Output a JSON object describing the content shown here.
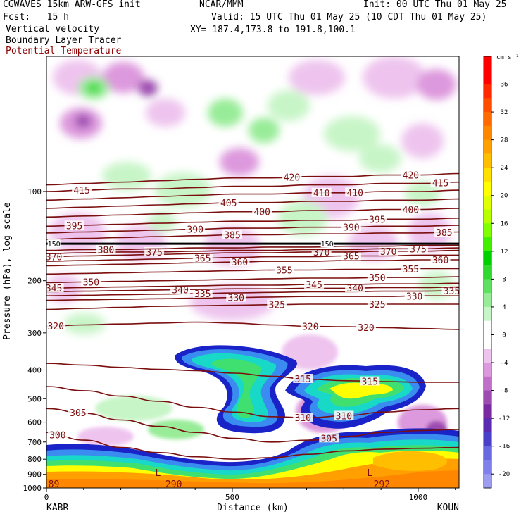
{
  "header": {
    "model": "CGWAVES 15km ARW-GFS init",
    "forecast": "Fcst:   15 h",
    "org": "NCAR/MMM",
    "init": "Init: 00 UTC Thu 01 May 25",
    "valid": "Valid: 15 UTC Thu 01 May 25 (10 CDT Thu 01 May 25)",
    "xy": "XY= 187.4,173.8 to 191.8,100.1",
    "field1": "Vertical velocity",
    "field2": "Boundary Layer Tracer",
    "field3": "Potential Temperature"
  },
  "colors": {
    "theta": "#7b0f0f",
    "tracer": "#1a23c8",
    "cross_150": "#000000"
  },
  "chart_data": {
    "type": "heatmap",
    "xlabel": "Distance (km)",
    "ylabel": "Pressure (hPa), log scale",
    "xlim": [
      0,
      1110
    ],
    "ylim_hpa": [
      1000,
      35
    ],
    "x_ticks": [
      0,
      500,
      1000
    ],
    "y_ticks": [
      100,
      200,
      300,
      400,
      500,
      600,
      700,
      800,
      900,
      1000
    ],
    "start_label": "KABR",
    "end_label": "KOUN",
    "colorbar": {
      "unit": "cm s⁻¹",
      "tick_labels": [
        "36",
        "32",
        "28",
        "24",
        "20",
        "16",
        "12",
        "8",
        "4",
        "0",
        "-4",
        "-8",
        "-12",
        "-16",
        "-20"
      ],
      "bands": [
        {
          "lo": 38,
          "hi": 40,
          "color": "#ff0000"
        },
        {
          "lo": 36,
          "hi": 38,
          "color": "#ff0000"
        },
        {
          "lo": 34,
          "hi": 36,
          "color": "#ff2a00"
        },
        {
          "lo": 32,
          "hi": 34,
          "color": "#ff4d00"
        },
        {
          "lo": 30,
          "hi": 32,
          "color": "#ff6a00"
        },
        {
          "lo": 28,
          "hi": 30,
          "color": "#ff8700"
        },
        {
          "lo": 26,
          "hi": 28,
          "color": "#ffa000"
        },
        {
          "lo": 24,
          "hi": 26,
          "color": "#ffbe00"
        },
        {
          "lo": 22,
          "hi": 24,
          "color": "#ffe000"
        },
        {
          "lo": 20,
          "hi": 22,
          "color": "#ffff00"
        },
        {
          "lo": 18,
          "hi": 20,
          "color": "#e0ff00"
        },
        {
          "lo": 16,
          "hi": 18,
          "color": "#b8ff00"
        },
        {
          "lo": 14,
          "hi": 16,
          "color": "#80ff00"
        },
        {
          "lo": 12,
          "hi": 14,
          "color": "#40f000"
        },
        {
          "lo": 10,
          "hi": 12,
          "color": "#00d000"
        },
        {
          "lo": 8,
          "hi": 10,
          "color": "#30d830"
        },
        {
          "lo": 6,
          "hi": 8,
          "color": "#60e060"
        },
        {
          "lo": 4,
          "hi": 6,
          "color": "#98ec98"
        },
        {
          "lo": 2,
          "hi": 4,
          "color": "#c8f5c8"
        },
        {
          "lo": 0,
          "hi": 2,
          "color": "#ffffff"
        },
        {
          "lo": -2,
          "hi": 0,
          "color": "#ffffff"
        },
        {
          "lo": -4,
          "hi": -2,
          "color": "#eec4ee"
        },
        {
          "lo": -6,
          "hi": -4,
          "color": "#dd99dd"
        },
        {
          "lo": -8,
          "hi": -6,
          "color": "#c070c8"
        },
        {
          "lo": -10,
          "hi": -8,
          "color": "#9c4cb0"
        },
        {
          "lo": -12,
          "hi": -10,
          "color": "#7a2aa0"
        },
        {
          "lo": -14,
          "hi": -12,
          "color": "#5a2ab0"
        },
        {
          "lo": -16,
          "hi": -14,
          "color": "#4a40c8"
        },
        {
          "lo": -18,
          "hi": -16,
          "color": "#6868e0"
        },
        {
          "lo": -20,
          "hi": -18,
          "color": "#8080ec"
        },
        {
          "lo": -22,
          "hi": -20,
          "color": "#9c9cf0"
        }
      ]
    },
    "theta_contours": [
      {
        "value": 300,
        "p": [
          650,
          690,
          730,
          760,
          785,
          800,
          790,
          770,
          750,
          740,
          735,
          730
        ],
        "labels": [
          {
            "x": 30,
            "text": "300"
          }
        ]
      },
      {
        "value": 305,
        "p": [
          540,
          560,
          590,
          620,
          650,
          680,
          700,
          690,
          670,
          650,
          640,
          635
        ],
        "labels": [
          {
            "x": 85,
            "text": "305"
          },
          {
            "x": 760,
            "text": "305"
          }
        ]
      },
      {
        "value": 310,
        "p": [
          455,
          470,
          490,
          510,
          535,
          555,
          575,
          580,
          570,
          555,
          545,
          540
        ],
        "labels": [
          {
            "x": 690,
            "text": "310"
          },
          {
            "x": 800,
            "text": "310"
          }
        ]
      },
      {
        "value": 315,
        "p": [
          380,
          385,
          392,
          398,
          402,
          410,
          420,
          430,
          435,
          438,
          440,
          440
        ],
        "labels": [
          {
            "x": 690,
            "text": "315"
          },
          {
            "x": 870,
            "text": "315"
          }
        ]
      },
      {
        "value": 320,
        "p": [
          285,
          282,
          280,
          278,
          276,
          278,
          282,
          285,
          286,
          288,
          290,
          292
        ],
        "labels": [
          {
            "x": 25,
            "text": "320"
          },
          {
            "x": 710,
            "text": "320"
          },
          {
            "x": 860,
            "text": "320"
          }
        ]
      },
      {
        "value": 325,
        "p": [
          250,
          248,
          246,
          244,
          243,
          242,
          241,
          240,
          240,
          240,
          240,
          240
        ],
        "labels": [
          {
            "x": 620,
            "text": "325"
          },
          {
            "x": 890,
            "text": "325"
          }
        ]
      },
      {
        "value": 330,
        "p": [
          233,
          232,
          231,
          230,
          229,
          228,
          227,
          226,
          226,
          226,
          225,
          225
        ],
        "labels": [
          {
            "x": 510,
            "text": "330"
          },
          {
            "x": 990,
            "text": "330"
          }
        ]
      },
      {
        "value": 335,
        "p": [
          225,
          224,
          223,
          222,
          221,
          220,
          219,
          218,
          218,
          217,
          217,
          216
        ],
        "labels": [
          {
            "x": 420,
            "text": "335"
          },
          {
            "x": 1090,
            "text": "335"
          }
        ]
      },
      {
        "value": 340,
        "p": [
          218,
          217,
          216,
          215,
          214,
          213,
          213,
          212,
          212,
          211,
          211,
          210
        ],
        "labels": [
          {
            "x": 360,
            "text": "340"
          },
          {
            "x": 830,
            "text": "340"
          }
        ]
      },
      {
        "value": 345,
        "p": [
          212,
          211,
          210,
          209,
          208,
          207,
          207,
          206,
          206,
          205,
          205,
          204
        ],
        "labels": [
          {
            "x": 20,
            "text": "345"
          },
          {
            "x": 720,
            "text": "345"
          }
        ]
      },
      {
        "value": 350,
        "p": [
          203,
          202,
          201,
          200,
          199,
          198,
          197,
          196,
          196,
          195,
          195,
          194
        ],
        "labels": [
          {
            "x": 120,
            "text": "350"
          },
          {
            "x": 890,
            "text": "350"
          }
        ]
      },
      {
        "value": 355,
        "p": [
          190,
          189,
          188,
          187,
          186,
          185,
          184,
          184,
          183,
          183,
          182,
          182
        ],
        "labels": [
          {
            "x": 640,
            "text": "355"
          },
          {
            "x": 980,
            "text": "355"
          }
        ]
      },
      {
        "value": 360,
        "p": [
          178,
          177,
          176,
          175,
          174,
          173,
          172,
          172,
          171,
          171,
          170,
          170
        ],
        "labels": [
          {
            "x": 520,
            "text": "360"
          },
          {
            "x": 1060,
            "text": "360"
          }
        ]
      },
      {
        "value": 365,
        "p": [
          172,
          171,
          170,
          169,
          168,
          167,
          166,
          166,
          165,
          165,
          164,
          164
        ],
        "labels": [
          {
            "x": 420,
            "text": "365"
          },
          {
            "x": 820,
            "text": "365"
          }
        ]
      },
      {
        "value": 370,
        "p": [
          166,
          165,
          164,
          163,
          162,
          161,
          161,
          160,
          160,
          159,
          159,
          158
        ],
        "labels": [
          {
            "x": 20,
            "text": "370"
          },
          {
            "x": 740,
            "text": "370"
          },
          {
            "x": 920,
            "text": "370"
          }
        ]
      },
      {
        "value": 375,
        "p": [
          162,
          161,
          160,
          160,
          159,
          158,
          158,
          157,
          157,
          156,
          156,
          155
        ],
        "labels": [
          {
            "x": 290,
            "text": "375"
          },
          {
            "x": 1000,
            "text": "375"
          }
        ]
      },
      {
        "value": 380,
        "p": [
          158,
          157,
          157,
          156,
          155,
          155,
          154,
          154,
          153,
          153,
          152,
          152
        ],
        "labels": [
          {
            "x": 160,
            "text": "380"
          }
        ]
      },
      {
        "value": 385,
        "p": [
          145,
          144,
          143,
          142,
          141,
          140,
          140,
          139,
          139,
          138,
          138,
          137
        ],
        "labels": [
          {
            "x": 500,
            "text": "385"
          },
          {
            "x": 1070,
            "text": "385"
          }
        ]
      },
      {
        "value": 390,
        "p": [
          138,
          137,
          136,
          135,
          134,
          133,
          133,
          132,
          132,
          131,
          131,
          130
        ],
        "labels": [
          {
            "x": 400,
            "text": "390"
          },
          {
            "x": 820,
            "text": "390"
          }
        ]
      },
      {
        "value": 395,
        "p": [
          131,
          130,
          129,
          128,
          127,
          126,
          126,
          125,
          125,
          124,
          124,
          123
        ],
        "labels": [
          {
            "x": 75,
            "text": "395"
          },
          {
            "x": 890,
            "text": "395"
          }
        ]
      },
      {
        "value": 400,
        "p": [
          122,
          121,
          120,
          119,
          118,
          117,
          117,
          116,
          116,
          115,
          115,
          114
        ],
        "labels": [
          {
            "x": 580,
            "text": "400"
          },
          {
            "x": 980,
            "text": "400"
          }
        ]
      },
      {
        "value": 405,
        "p": [
          114,
          113,
          112,
          111,
          110,
          109,
          109,
          108,
          108,
          107,
          107,
          106
        ],
        "labels": [
          {
            "x": 490,
            "text": "405"
          }
        ]
      },
      {
        "value": 410,
        "p": [
          107,
          106,
          105,
          104,
          103,
          102,
          102,
          101,
          101,
          100,
          100,
          99
        ],
        "labels": [
          {
            "x": 740,
            "text": "410"
          },
          {
            "x": 830,
            "text": "410"
          }
        ]
      },
      {
        "value": 415,
        "p": [
          100,
          99,
          98,
          98,
          97,
          96,
          96,
          95,
          95,
          94,
          94,
          93
        ],
        "labels": [
          {
            "x": 95,
            "text": "415"
          },
          {
            "x": 1060,
            "text": "415"
          }
        ]
      },
      {
        "value": 420,
        "p": [
          95,
          94,
          93,
          92,
          91,
          90,
          90,
          89,
          89,
          88,
          88,
          87
        ],
        "labels": [
          {
            "x": 660,
            "text": "420"
          },
          {
            "x": 980,
            "text": "420"
          }
        ]
      }
    ],
    "special_line": {
      "label": "150",
      "p": 150,
      "label_positions": [
        5,
        740
      ]
    },
    "low_markers": [
      {
        "x": 300,
        "text": "L"
      },
      {
        "x": 870,
        "text": "L"
      }
    ],
    "bottom_labels": [
      {
        "x": 5,
        "text": "89"
      },
      {
        "x": 320,
        "text": "290"
      },
      {
        "x": 880,
        "text": "292"
      }
    ]
  }
}
